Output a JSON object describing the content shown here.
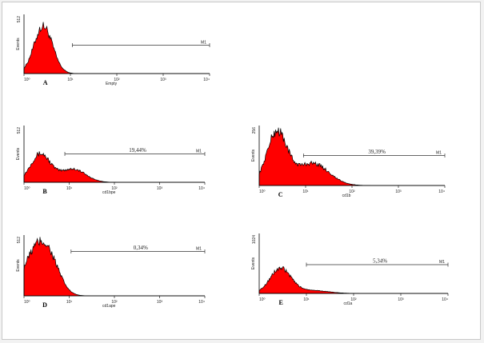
{
  "chart_data": [
    {
      "panel": "A",
      "type": "area",
      "ylabel": "Events",
      "ymax_label": "512",
      "ylim": [
        0,
        512
      ],
      "xlabel": "Empty",
      "xscale": "log",
      "xlim": [
        1,
        10000
      ],
      "xticks": [
        "10⁰",
        "10¹",
        "10²",
        "10³",
        "10⁴"
      ],
      "gate": {
        "label": "M1",
        "from": 11,
        "to": 10000,
        "percent": ""
      },
      "peaks": [
        {
          "center": 2.6,
          "sigma": 0.2,
          "height": 410
        }
      ],
      "fill_color": "#ff0000"
    },
    {
      "panel": "B",
      "type": "area",
      "ylabel": "Events",
      "ymax_label": "512",
      "ylim": [
        0,
        512
      ],
      "xlabel": "cd1bpe",
      "xscale": "log",
      "xlim": [
        1,
        10000
      ],
      "xticks": [
        "10⁰",
        "10¹",
        "10²",
        "10³",
        "10⁴"
      ],
      "gate": {
        "label": "M1",
        "from": 8,
        "to": 10000,
        "percent": "19,44%"
      },
      "peaks": [
        {
          "center": 2.3,
          "sigma": 0.22,
          "height": 255
        },
        {
          "center": 12,
          "sigma": 0.28,
          "height": 120
        }
      ],
      "fill_color": "#ff0000"
    },
    {
      "panel": "C",
      "type": "area",
      "ylabel": "Events",
      "ymax_label": "256",
      "ylim": [
        0,
        256
      ],
      "xlabel": "cd1b",
      "xscale": "log",
      "xlim": [
        1,
        10000
      ],
      "xticks": [
        "10⁰",
        "10¹",
        "10²",
        "10³",
        "10⁴"
      ],
      "gate": {
        "label": "M1",
        "from": 9,
        "to": 10000,
        "percent": "39,39%"
      },
      "peaks": [
        {
          "center": 2.4,
          "sigma": 0.22,
          "height": 225
        },
        {
          "center": 14,
          "sigma": 0.35,
          "height": 95
        }
      ],
      "fill_color": "#ff0000"
    },
    {
      "panel": "D",
      "type": "area",
      "ylabel": "Events",
      "ymax_label": "512",
      "ylim": [
        0,
        512
      ],
      "xlabel": "cd1ape",
      "xscale": "log",
      "xlim": [
        1,
        10000
      ],
      "xticks": [
        "10⁰",
        "10¹",
        "10²",
        "10³",
        "10⁴"
      ],
      "gate": {
        "label": "M1",
        "from": 11,
        "to": 10000,
        "percent": "0,34%"
      },
      "peaks": [
        {
          "center": 2.0,
          "sigma": 0.3,
          "height": 395
        },
        {
          "center": 4.0,
          "sigma": 0.22,
          "height": 130
        }
      ],
      "fill_color": "#ff0000"
    },
    {
      "panel": "E",
      "type": "area",
      "ylabel": "Events",
      "ymax_label": "1024",
      "ylim": [
        0,
        1024
      ],
      "xlabel": "cd1a",
      "xscale": "log",
      "xlim": [
        1,
        10000
      ],
      "xticks": [
        "10⁰",
        "10¹",
        "10²",
        "10³",
        "10⁴"
      ],
      "gate": {
        "label": "M1",
        "from": 10,
        "to": 10000,
        "percent": "5,34%"
      },
      "peaks": [
        {
          "center": 2.8,
          "sigma": 0.22,
          "height": 420
        },
        {
          "center": 12,
          "sigma": 0.35,
          "height": 55
        }
      ],
      "fill_color": "#ff0000"
    }
  ]
}
